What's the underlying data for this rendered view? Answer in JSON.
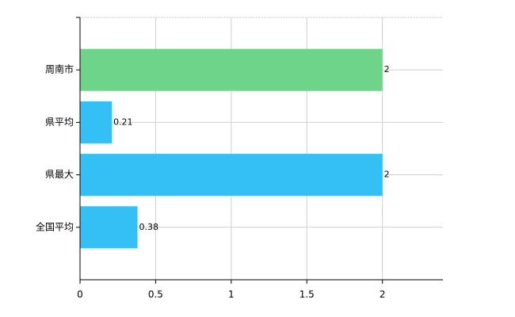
{
  "chart_data": {
    "type": "barh",
    "categories": [
      "周南市",
      "県平均",
      "県最大",
      "全国平均"
    ],
    "values": [
      2,
      0.21,
      2,
      0.38
    ],
    "colors": [
      "#6dd48a",
      "#35c0f5",
      "#35c0f5",
      "#35c0f5"
    ],
    "xlim": [
      0,
      2.4
    ],
    "xticks": [
      0,
      0.5,
      1,
      1.5,
      2
    ],
    "grid": true
  }
}
